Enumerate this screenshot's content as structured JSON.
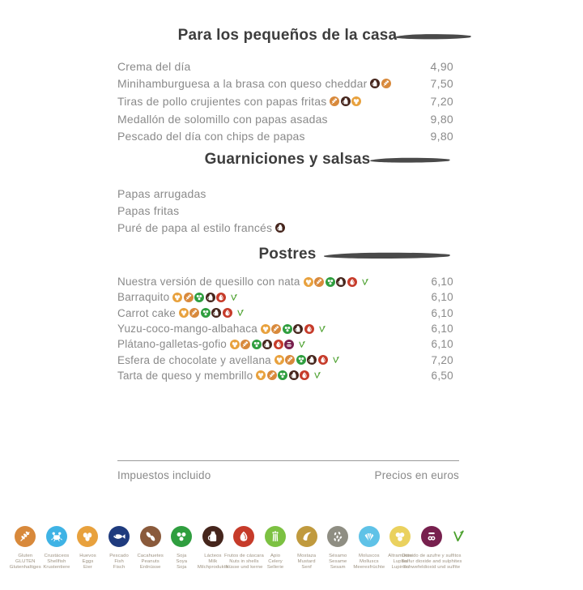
{
  "footer": {
    "left": "Impuestos incluido",
    "right": "Precios en euros"
  },
  "colors": {
    "heading": "#3d3d3d",
    "item_text": "#8a8a8a",
    "brush": "#4a4a4a",
    "divider": "#9a9a9a",
    "vegetarian": "#4aa02c"
  },
  "sections": [
    {
      "title": "Para los pequeños de la casa",
      "items": [
        {
          "name": "Crema del día",
          "allergens": [],
          "veg": false,
          "price": "4,90"
        },
        {
          "name": "Minihamburguesa a la brasa con queso cheddar",
          "allergens": [
            "milk",
            "gluten"
          ],
          "veg": false,
          "price": "7,50"
        },
        {
          "name": "Tiras de pollo crujientes con papas fritas",
          "allergens": [
            "gluten",
            "milk",
            "eggs"
          ],
          "veg": false,
          "price": "7,20"
        },
        {
          "name": "Medallón de solomillo con papas asadas",
          "allergens": [],
          "veg": false,
          "price": "9,80"
        },
        {
          "name": "Pescado del día con chips de papas",
          "allergens": [],
          "veg": false,
          "price": "9,80"
        }
      ]
    },
    {
      "title": "Guarniciones y salsas",
      "items": [
        {
          "name": "Papas arrugadas",
          "allergens": [],
          "veg": false,
          "price": ""
        },
        {
          "name": "Papas fritas",
          "allergens": [],
          "veg": false,
          "price": ""
        },
        {
          "name": "Puré de papa al estilo francés",
          "allergens": [
            "milk"
          ],
          "veg": false,
          "price": ""
        }
      ]
    },
    {
      "title": "Postres",
      "items": [
        {
          "name": "Nuestra versión de quesillo con nata",
          "allergens": [
            "eggs",
            "gluten",
            "soy",
            "milk",
            "nuts"
          ],
          "veg": true,
          "price": "6,10"
        },
        {
          "name": "Barraquito",
          "allergens": [
            "eggs",
            "gluten",
            "soy",
            "milk",
            "nuts"
          ],
          "veg": true,
          "price": "6,10"
        },
        {
          "name": "Carrot cake",
          "allergens": [
            "eggs",
            "gluten",
            "soy",
            "milk",
            "nuts"
          ],
          "veg": true,
          "price": "6,10"
        },
        {
          "name": "Yuzu-coco-mango-albahaca",
          "allergens": [
            "eggs",
            "gluten",
            "soy",
            "milk",
            "nuts"
          ],
          "veg": true,
          "price": "6,10"
        },
        {
          "name": "Plátano-galletas-gofio",
          "allergens": [
            "eggs",
            "gluten",
            "soy",
            "milk",
            "nuts",
            "sulfites"
          ],
          "veg": true,
          "price": "6,10"
        },
        {
          "name": "Esfera de chocolate y avellana",
          "allergens": [
            "eggs",
            "gluten",
            "soy",
            "milk",
            "nuts"
          ],
          "veg": true,
          "price": "7,20"
        },
        {
          "name": "Tarta de queso y membrillo",
          "allergens": [
            "eggs",
            "gluten",
            "soy",
            "milk",
            "nuts"
          ],
          "veg": true,
          "price": "6,50"
        }
      ]
    }
  ],
  "allergens": [
    {
      "id": "gluten",
      "icon": "wheat-icon",
      "color": "#d8893b",
      "labels": [
        "Gluten",
        "GLUTEN",
        "Glutenhaltiges"
      ]
    },
    {
      "id": "crustaceans",
      "icon": "crab-icon",
      "color": "#3fb3e5",
      "labels": [
        "Crustáceos",
        "Shellfish",
        "Krustentiere"
      ]
    },
    {
      "id": "eggs",
      "icon": "eggs-icon",
      "color": "#e8a13d",
      "labels": [
        "Huevos",
        "Eggs",
        "Eier"
      ]
    },
    {
      "id": "fish",
      "icon": "fish-icon",
      "color": "#1f3b7e",
      "labels": [
        "Pescado",
        "Fish",
        "Fisch"
      ]
    },
    {
      "id": "peanuts",
      "icon": "peanut-icon",
      "color": "#8a5a3b",
      "labels": [
        "Cacahuetes",
        "Peanuts",
        "Erdnüsse"
      ]
    },
    {
      "id": "soy",
      "icon": "soybean-icon",
      "color": "#2f9e3f",
      "labels": [
        "Soja",
        "Soya",
        "Soja"
      ]
    },
    {
      "id": "milk",
      "icon": "milk-jug-icon",
      "color": "#45251c",
      "labels": [
        "Lácteos",
        "Milk",
        "Milchprodukte"
      ]
    },
    {
      "id": "nuts",
      "icon": "nut-shell-icon",
      "color": "#c63b2a",
      "labels": [
        "Frutos de cáscara",
        "Nuts in shells",
        "Nüsse und kerne"
      ]
    },
    {
      "id": "celery",
      "icon": "celery-icon",
      "color": "#7cc142",
      "labels": [
        "Apio",
        "Celery",
        "Sellerie"
      ]
    },
    {
      "id": "mustard",
      "icon": "mustard-icon",
      "color": "#c09a3e",
      "labels": [
        "Mostaza",
        "Mustard",
        "Senf"
      ]
    },
    {
      "id": "sesame",
      "icon": "sesame-seeds-icon",
      "color": "#8f8e83",
      "labels": [
        "Sésamo",
        "Sesame",
        "Sesam"
      ]
    },
    {
      "id": "molluscs",
      "icon": "shell-icon",
      "color": "#5fc2e7",
      "labels": [
        "Moluscos",
        "Molluscs",
        "Meeresfrüchte"
      ]
    },
    {
      "id": "lupins",
      "icon": "lupin-seeds-icon",
      "color": "#ead15e",
      "labels": [
        "Altramuces",
        "Lupins",
        "Lupinen"
      ]
    },
    {
      "id": "sulfites",
      "icon": "so2-icon",
      "color": "#77204e",
      "labels": [
        "Dióxido de azufre y sulfitos",
        "Sulfur dioxide and sulphites",
        "Schwefeldioxid und sulfite"
      ]
    }
  ],
  "vegetarian_mark": {
    "icon": "vegetarian-v-icon",
    "color": "#4aa02c"
  }
}
